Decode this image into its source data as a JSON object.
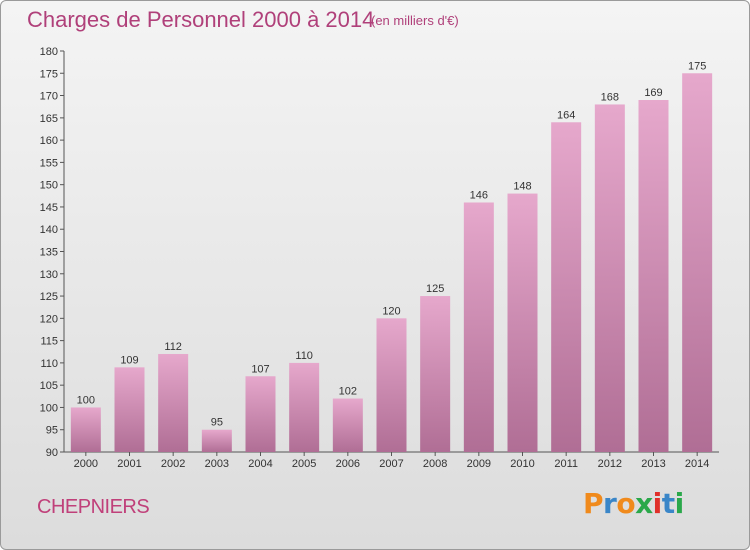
{
  "header": {
    "title": "Charges de Personnel 2000 à 2014",
    "subtitle": "(en milliers d'€)"
  },
  "footer": {
    "commune": "CHEPNIERS",
    "logo_letters": [
      "P",
      "r",
      "o",
      "x",
      "i",
      "t",
      "i"
    ]
  },
  "colors": {
    "bar_top": "#e6a8cc",
    "bar_bottom": "#b06e95",
    "title": "#b0407a",
    "logo": [
      "#f08a1c",
      "#3a86c8",
      "#f08a1c",
      "#2aa84a",
      "#e0302a",
      "#3a86c8",
      "#2aa84a"
    ]
  },
  "chart_data": {
    "type": "bar",
    "title": "Charges de Personnel 2000 à 2014",
    "subtitle": "(en milliers d'€)",
    "categories": [
      "2000",
      "2001",
      "2002",
      "2003",
      "2004",
      "2005",
      "2006",
      "2007",
      "2008",
      "2009",
      "2010",
      "2011",
      "2012",
      "2013",
      "2014"
    ],
    "values": [
      100,
      109,
      112,
      95,
      107,
      110,
      102,
      120,
      125,
      146,
      148,
      164,
      168,
      169,
      175
    ],
    "ylim": [
      90,
      180
    ],
    "yticks": [
      90,
      95,
      100,
      105,
      110,
      115,
      120,
      125,
      130,
      135,
      140,
      145,
      150,
      155,
      160,
      165,
      170,
      175,
      180
    ],
    "xlabel": "",
    "ylabel": "",
    "grid": false,
    "legend": "none"
  }
}
